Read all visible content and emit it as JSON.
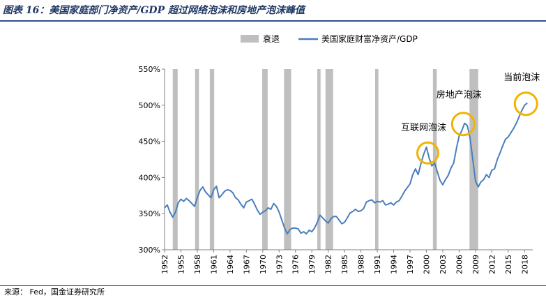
{
  "header": {
    "title": "图表 16：美国家庭部门净资产/GDP 超过网络泡沫和房地产泡沫峰值",
    "source": "来源：  Fed，国金证券研究所"
  },
  "chart_data": {
    "type": "line",
    "title": "图表 16：美国家庭部门净资产/GDP 超过网络泡沫和房地产泡沫峰值",
    "xlabel": "",
    "ylabel": "",
    "xlim": [
      1952,
      2019.5
    ],
    "ylim": [
      300,
      550
    ],
    "y_ticks": [
      300,
      350,
      400,
      450,
      500,
      550
    ],
    "y_tick_labels": [
      "300%",
      "350%",
      "400%",
      "450%",
      "500%",
      "550%"
    ],
    "x_ticks": [
      1952,
      1955,
      1958,
      1961,
      1964,
      1967,
      1970,
      1973,
      1976,
      1979,
      1982,
      1985,
      1988,
      1991,
      1994,
      1997,
      2000,
      2003,
      2006,
      2009,
      2012,
      2015,
      2018
    ],
    "legend": {
      "placement": "top-center",
      "recession_label": "衰退",
      "series_label": "美国家庭财富净资产/GDP"
    },
    "recessions": [
      [
        1953.5,
        1954.4
      ],
      [
        1957.6,
        1958.3
      ],
      [
        1960.3,
        1961.1
      ],
      [
        1969.9,
        1970.9
      ],
      [
        1973.9,
        1975.2
      ],
      [
        1980.0,
        1980.6
      ],
      [
        1981.5,
        1982.9
      ],
      [
        1990.6,
        1991.2
      ],
      [
        2001.2,
        2001.9
      ],
      [
        2007.9,
        2009.5
      ]
    ],
    "series": [
      {
        "name": "美国家庭财富净资产/GDP",
        "color": "#4a7ebb",
        "x": [
          1952,
          1952.5,
          1953,
          1953.5,
          1954,
          1954.5,
          1955,
          1955.5,
          1956,
          1956.5,
          1957,
          1957.5,
          1958,
          1958.5,
          1959,
          1959.5,
          1960,
          1960.5,
          1961,
          1961.5,
          1962,
          1962.5,
          1963,
          1963.5,
          1964,
          1964.5,
          1965,
          1965.5,
          1966,
          1966.5,
          1967,
          1967.5,
          1968,
          1968.5,
          1969,
          1969.5,
          1970,
          1970.5,
          1971,
          1971.5,
          1972,
          1972.5,
          1973,
          1973.5,
          1974,
          1974.5,
          1975,
          1975.5,
          1976,
          1976.5,
          1977,
          1977.5,
          1978,
          1978.5,
          1979,
          1979.5,
          1980,
          1980.5,
          1981,
          1981.5,
          1982,
          1982.5,
          1983,
          1983.5,
          1984,
          1984.5,
          1985,
          1985.5,
          1986,
          1986.5,
          1987,
          1987.5,
          1988,
          1988.5,
          1989,
          1989.5,
          1990,
          1990.5,
          1991,
          1991.5,
          1992,
          1992.5,
          1993,
          1993.5,
          1994,
          1994.5,
          1995,
          1995.5,
          1996,
          1996.5,
          1997,
          1997.5,
          1998,
          1998.5,
          1999,
          1999.5,
          2000,
          2000.5,
          2001,
          2001.5,
          2002,
          2002.5,
          2003,
          2003.5,
          2004,
          2004.5,
          2005,
          2005.5,
          2006,
          2006.5,
          2007,
          2007.5,
          2008,
          2008.5,
          2009,
          2009.5,
          2010,
          2010.5,
          2011,
          2011.5,
          2012,
          2012.5,
          2013,
          2013.5,
          2014,
          2014.5,
          2015,
          2015.5,
          2016,
          2016.5,
          2017,
          2017.5,
          2018,
          2018.5
        ],
        "values": [
          358,
          362,
          352,
          345,
          352,
          365,
          370,
          367,
          371,
          368,
          364,
          360,
          372,
          382,
          387,
          380,
          376,
          372,
          383,
          388,
          372,
          376,
          381,
          383,
          382,
          379,
          372,
          369,
          363,
          358,
          366,
          368,
          370,
          363,
          355,
          349,
          352,
          354,
          358,
          356,
          364,
          360,
          352,
          341,
          330,
          322,
          328,
          330,
          330,
          329,
          323,
          325,
          322,
          327,
          325,
          330,
          338,
          348,
          344,
          340,
          337,
          343,
          346,
          346,
          341,
          336,
          338,
          344,
          351,
          353,
          356,
          353,
          354,
          357,
          366,
          368,
          369,
          365,
          367,
          366,
          368,
          362,
          363,
          365,
          362,
          366,
          368,
          374,
          381,
          386,
          391,
          404,
          412,
          404,
          419,
          432,
          442,
          427,
          416,
          420,
          408,
          396,
          390,
          397,
          403,
          413,
          420,
          440,
          457,
          465,
          475,
          472,
          455,
          425,
          395,
          387,
          394,
          397,
          404,
          400,
          410,
          412,
          425,
          434,
          444,
          453,
          456,
          462,
          468,
          475,
          484,
          493,
          500,
          503
        ]
      }
    ],
    "annotations": [
      {
        "label": "互联网泡沫",
        "x": 2000.0,
        "y": 432
      },
      {
        "label": "房地产泡沫",
        "x": 2006.5,
        "y": 472
      },
      {
        "label": "当前泡沫",
        "x": 2018.0,
        "y": 500
      }
    ]
  }
}
